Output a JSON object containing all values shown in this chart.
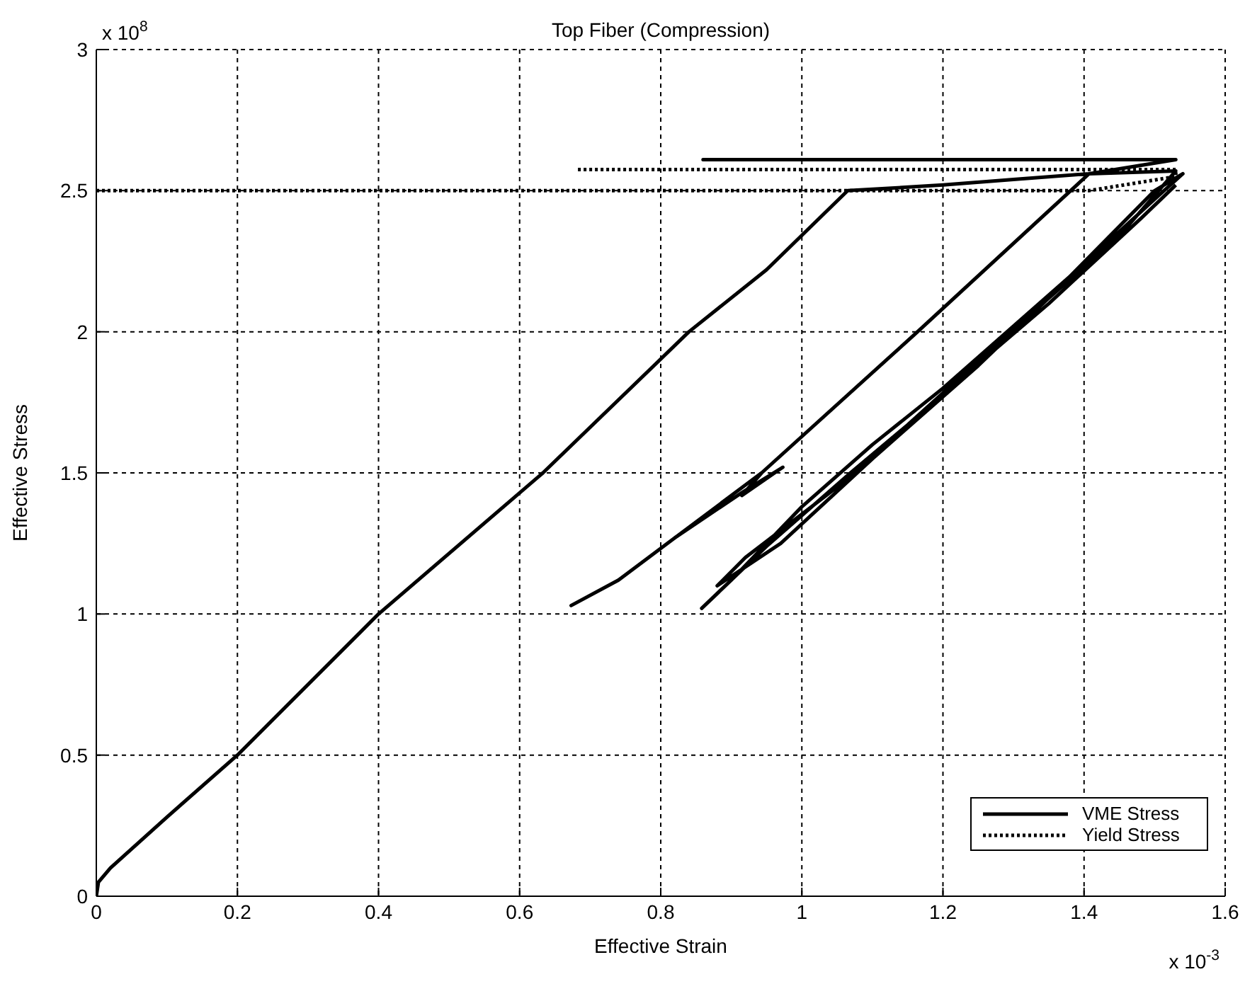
{
  "chart_data": {
    "type": "line",
    "title": "Top Fiber (Compression)",
    "xlabel": "Effective Strain",
    "ylabel": "Effective Stress",
    "annotations": [
      "x 10$^{8}$",
      "x 10$^{-3}$"
    ],
    "xlim": [
      0,
      1.6
    ],
    "xticks": [
      0,
      0.2,
      0.4,
      0.6,
      0.8,
      1,
      1.2,
      1.4,
      1.6
    ],
    "ylim": [
      0,
      3
    ],
    "yticks": [
      0,
      0.5,
      1,
      1.5,
      2,
      2.5,
      3
    ],
    "grid": true,
    "legend": "bottom right",
    "marker": "none",
    "series": [
      {
        "name": "VME Stress",
        "color": "#000000",
        "line_style": "solid",
        "x": [
          0,
          0.003,
          0.02,
          0.1,
          0.2,
          0.4,
          0.633,
          0.84,
          0.95,
          1.065,
          1.2,
          1.3,
          1.407,
          1.53,
          0.86,
          1.53,
          1.407,
          1.164,
          0.943,
          0.915,
          0.973,
          0.915,
          0.82,
          0.74,
          0.673,
          0.74,
          0.82,
          0.943,
          1.164,
          1.407,
          1.53,
          1.45,
          1.296,
          1.15,
          1.069,
          0.95,
          0.858,
          0.9,
          1.0,
          1.1,
          1.2,
          1.3,
          1.4,
          1.5,
          1.54,
          1.5,
          1.35,
          1.25,
          1.1,
          0.97,
          0.88,
          0.92,
          1.05,
          1.2,
          1.35,
          1.48,
          1.53
        ],
        "values": [
          0,
          0.05,
          0.1,
          0.28,
          0.5,
          1.0,
          1.5,
          2.0,
          2.22,
          2.5,
          2.52,
          2.54,
          2.56,
          2.61,
          2.61,
          2.61,
          2.56,
          2.0,
          1.5,
          1.42,
          1.52,
          1.43,
          1.27,
          1.12,
          1.03,
          1.12,
          1.27,
          1.5,
          2.0,
          2.56,
          2.57,
          2.34,
          2.0,
          1.67,
          1.5,
          1.24,
          1.02,
          1.12,
          1.38,
          1.6,
          1.8,
          2.02,
          2.24,
          2.47,
          2.56,
          2.5,
          2.12,
          1.88,
          1.55,
          1.25,
          1.1,
          1.2,
          1.45,
          1.78,
          2.1,
          2.4,
          2.52
        ]
      },
      {
        "name": "Yield Stress",
        "color": "#000000",
        "line_style": "dotted",
        "x": [
          0,
          1.065,
          1.3,
          1.407,
          1.53,
          1.53,
          0.68
        ],
        "values": [
          2.5,
          2.5,
          2.5,
          2.5,
          2.55,
          2.575,
          2.575
        ]
      }
    ]
  }
}
